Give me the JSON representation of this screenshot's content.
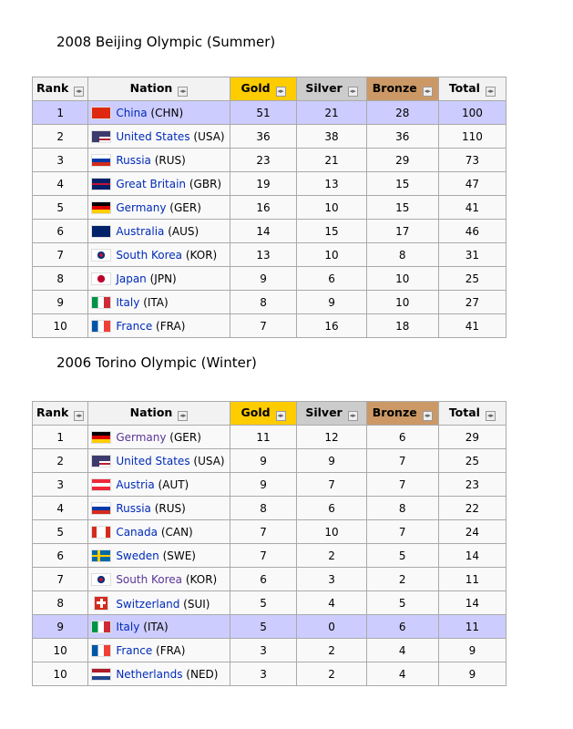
{
  "sort_icon": "sort-arrows-icon",
  "tables": [
    {
      "title": "2008 Beijing Olympic (Summer)",
      "headers": [
        "Rank",
        "Nation",
        "Gold",
        "Silver",
        "Bronze",
        "Total"
      ],
      "highlight_rank_row": 0,
      "rows": [
        {
          "rank": "1",
          "nation": "China",
          "code": "(CHN)",
          "flag": "chn",
          "gold": "51",
          "silver": "21",
          "bronze": "28",
          "total": "100"
        },
        {
          "rank": "2",
          "nation": "United States",
          "code": "(USA)",
          "flag": "usa",
          "gold": "36",
          "silver": "38",
          "bronze": "36",
          "total": "110"
        },
        {
          "rank": "3",
          "nation": "Russia",
          "code": "(RUS)",
          "flag": "rus",
          "gold": "23",
          "silver": "21",
          "bronze": "29",
          "total": "73"
        },
        {
          "rank": "4",
          "nation": "Great Britain",
          "code": "(GBR)",
          "flag": "gbr",
          "gold": "19",
          "silver": "13",
          "bronze": "15",
          "total": "47"
        },
        {
          "rank": "5",
          "nation": "Germany",
          "code": "(GER)",
          "flag": "ger",
          "gold": "16",
          "silver": "10",
          "bronze": "15",
          "total": "41"
        },
        {
          "rank": "6",
          "nation": "Australia",
          "code": "(AUS)",
          "flag": "aus",
          "gold": "14",
          "silver": "15",
          "bronze": "17",
          "total": "46"
        },
        {
          "rank": "7",
          "nation": "South Korea",
          "code": "(KOR)",
          "flag": "kor",
          "gold": "13",
          "silver": "10",
          "bronze": "8",
          "total": "31"
        },
        {
          "rank": "8",
          "nation": "Japan",
          "code": "(JPN)",
          "flag": "jpn",
          "gold": "9",
          "silver": "6",
          "bronze": "10",
          "total": "25"
        },
        {
          "rank": "9",
          "nation": "Italy",
          "code": "(ITA)",
          "flag": "ita",
          "gold": "8",
          "silver": "9",
          "bronze": "10",
          "total": "27"
        },
        {
          "rank": "10",
          "nation": "France",
          "code": "(FRA)",
          "flag": "fra",
          "gold": "7",
          "silver": "16",
          "bronze": "18",
          "total": "41"
        }
      ]
    },
    {
      "title": "2006 Torino Olympic (Winter)",
      "headers": [
        "Rank",
        "Nation",
        "Gold",
        "Silver",
        "Bronze",
        "Total"
      ],
      "highlight_rank_row": 8,
      "rows": [
        {
          "rank": "1",
          "nation": "Germany",
          "code": "(GER)",
          "flag": "ger",
          "gold": "11",
          "silver": "12",
          "bronze": "6",
          "total": "29",
          "visited": true
        },
        {
          "rank": "2",
          "nation": "United States",
          "code": "(USA)",
          "flag": "usa",
          "gold": "9",
          "silver": "9",
          "bronze": "7",
          "total": "25"
        },
        {
          "rank": "3",
          "nation": "Austria",
          "code": "(AUT)",
          "flag": "aut",
          "gold": "9",
          "silver": "7",
          "bronze": "7",
          "total": "23"
        },
        {
          "rank": "4",
          "nation": "Russia",
          "code": "(RUS)",
          "flag": "rus",
          "gold": "8",
          "silver": "6",
          "bronze": "8",
          "total": "22"
        },
        {
          "rank": "5",
          "nation": "Canada",
          "code": "(CAN)",
          "flag": "can",
          "gold": "7",
          "silver": "10",
          "bronze": "7",
          "total": "24"
        },
        {
          "rank": "6",
          "nation": "Sweden",
          "code": "(SWE)",
          "flag": "swe",
          "gold": "7",
          "silver": "2",
          "bronze": "5",
          "total": "14"
        },
        {
          "rank": "7",
          "nation": "South Korea",
          "code": "(KOR)",
          "flag": "kor",
          "gold": "6",
          "silver": "3",
          "bronze": "2",
          "total": "11",
          "visited": true
        },
        {
          "rank": "8",
          "nation": "Switzerland",
          "code": "(SUI)",
          "flag": "sui",
          "gold": "5",
          "silver": "4",
          "bronze": "5",
          "total": "14"
        },
        {
          "rank": "9",
          "nation": "Italy",
          "code": "(ITA)",
          "flag": "ita",
          "gold": "5",
          "silver": "0",
          "bronze": "6",
          "total": "11"
        },
        {
          "rank": "10",
          "nation": "France",
          "code": "(FRA)",
          "flag": "fra",
          "gold": "3",
          "silver": "2",
          "bronze": "4",
          "total": "9"
        },
        {
          "rank": "10",
          "nation": "Netherlands",
          "code": "(NED)",
          "flag": "ned",
          "gold": "3",
          "silver": "2",
          "bronze": "4",
          "total": "9"
        }
      ]
    }
  ]
}
